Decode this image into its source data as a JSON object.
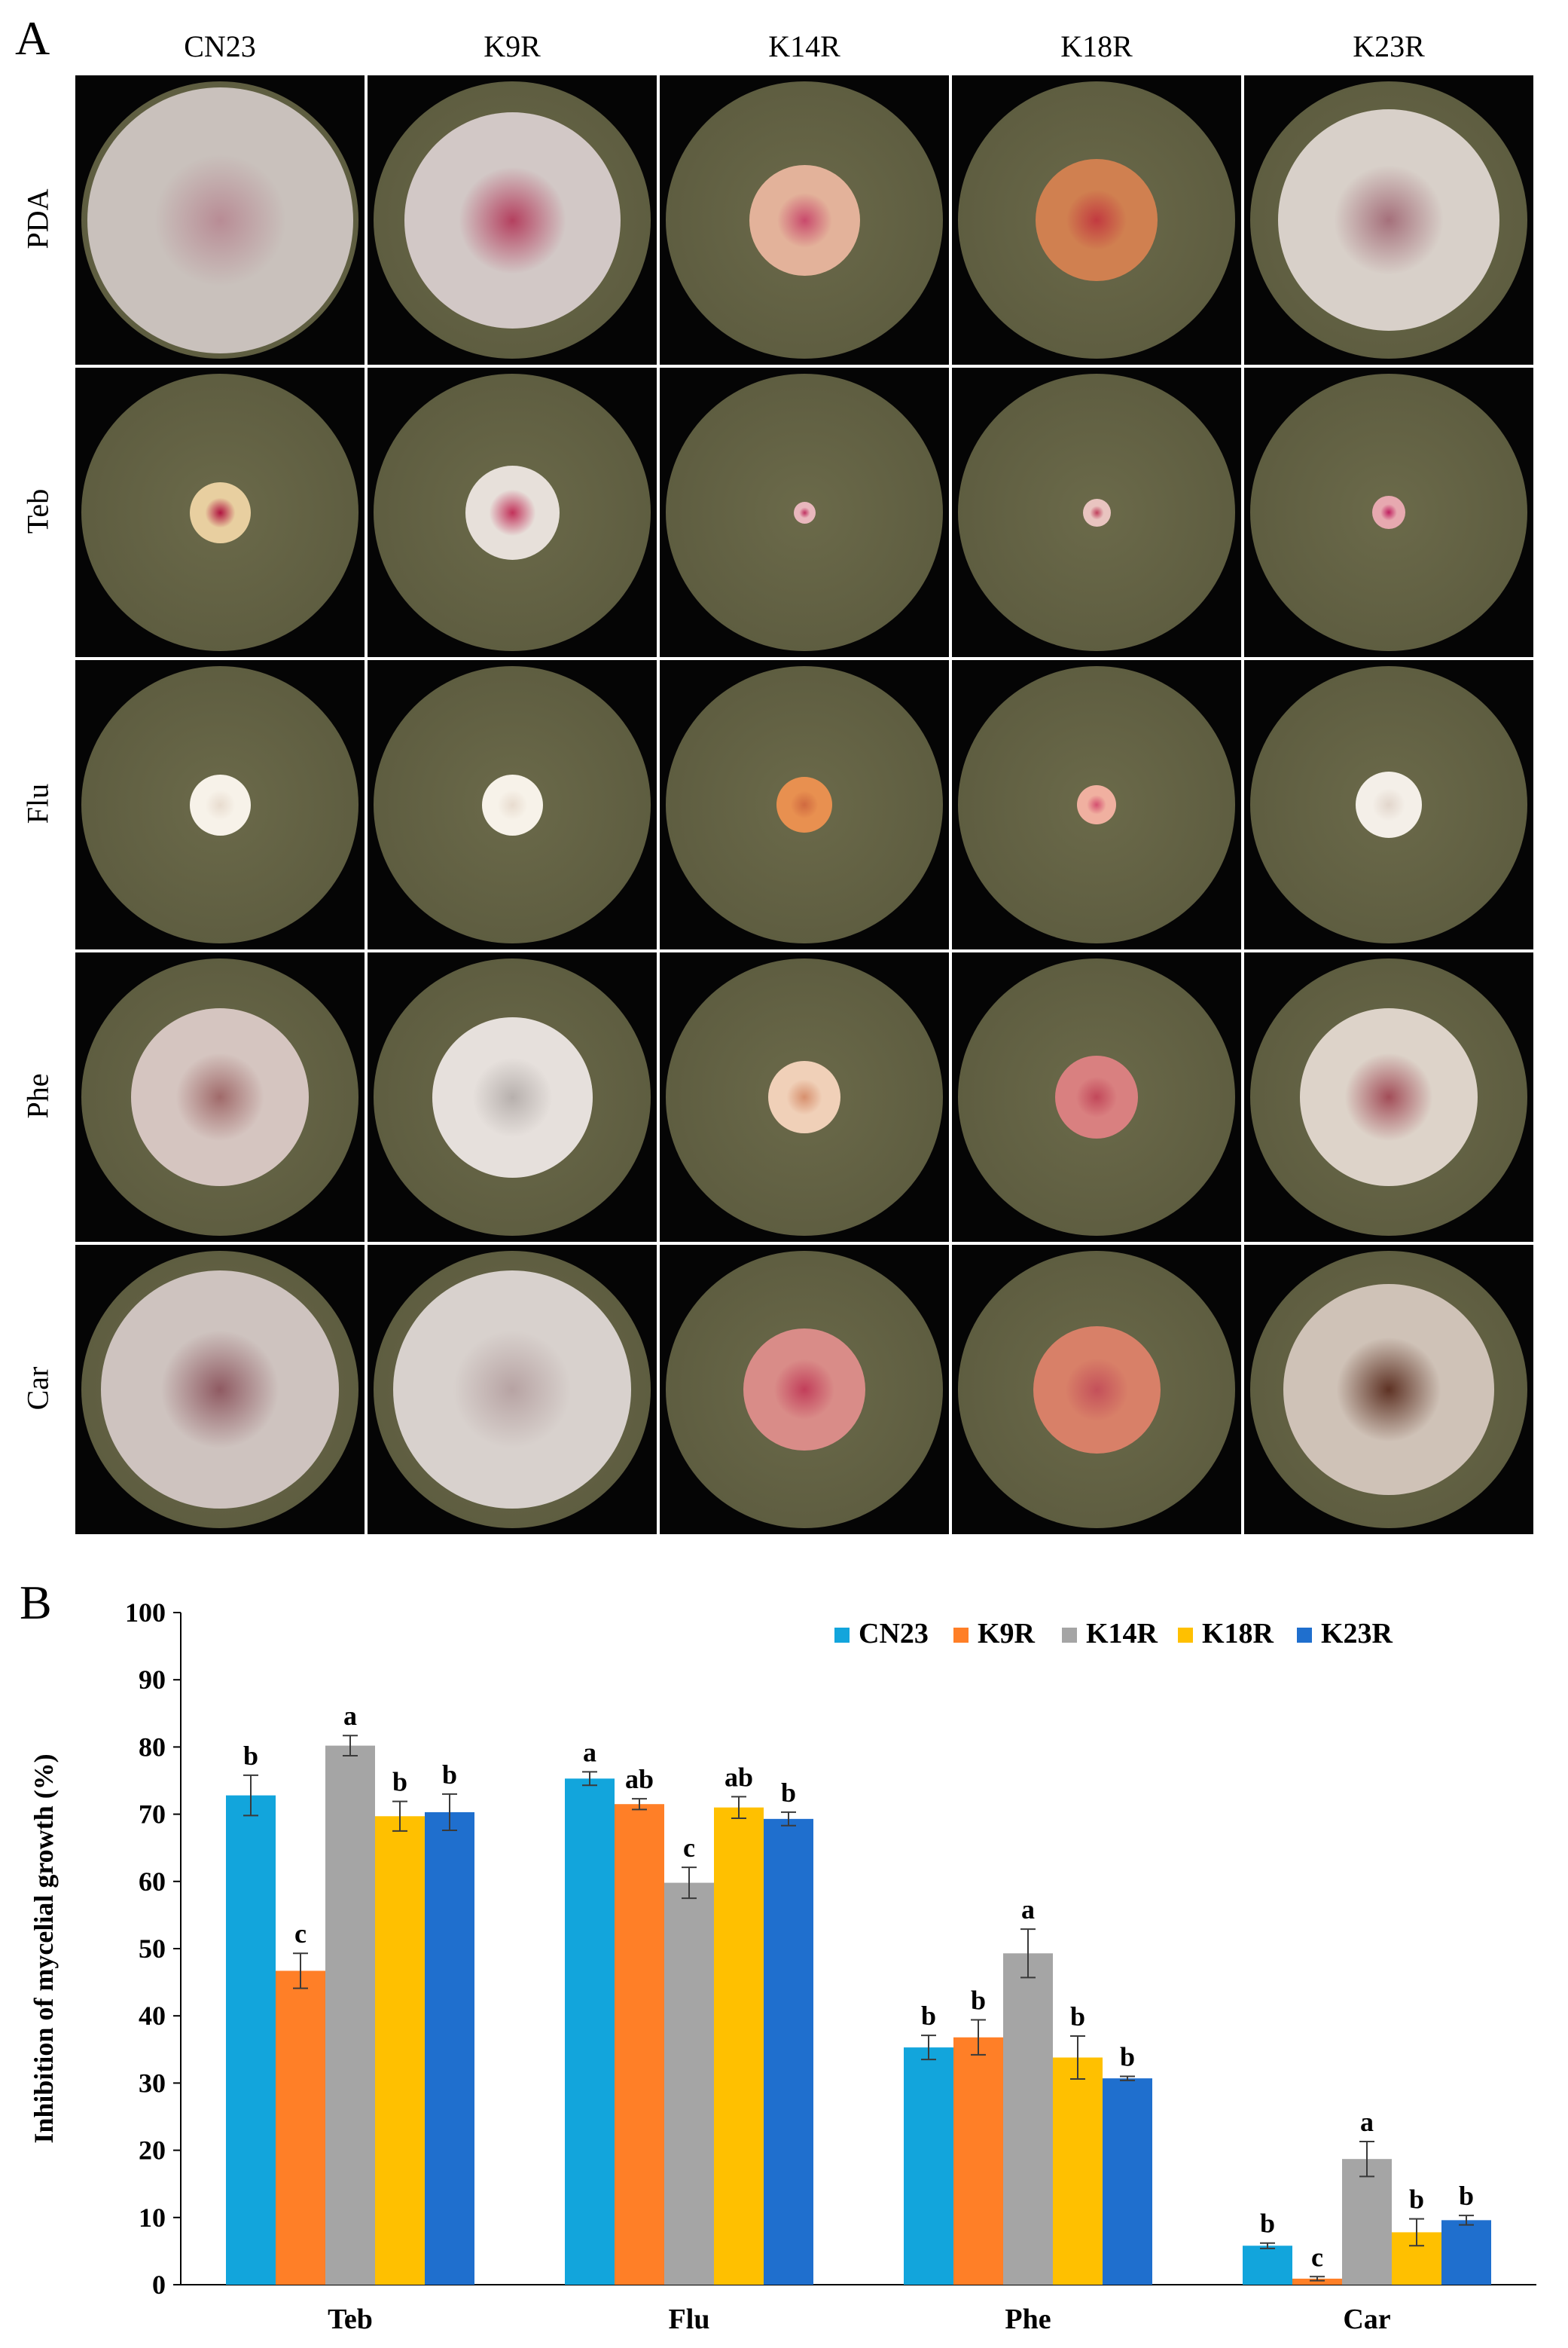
{
  "panel_a": {
    "letter": "A",
    "columns": [
      "CN23",
      "K9R",
      "K14R",
      "K18R",
      "K23R"
    ],
    "rows": [
      "PDA",
      "Teb",
      "Flu",
      "Phe",
      "Car"
    ],
    "colors": {
      "background": "#050505",
      "agar": "#6b6a4a",
      "rim": "#a8a279"
    }
  },
  "panel_b": {
    "letter": "B"
  },
  "chart_data": {
    "type": "bar",
    "title": "",
    "xlabel": "",
    "ylabel": "Inhibition of mycelial growth (%)",
    "ylim": [
      0,
      100
    ],
    "yticks": [
      "0",
      "10",
      "20",
      "30",
      "40",
      "50",
      "60",
      "70",
      "80",
      "90",
      "100"
    ],
    "grid": false,
    "legend_position": "top-right",
    "categories": [
      "Teb",
      "Flu",
      "Phe",
      "Car"
    ],
    "series": [
      {
        "name": "CN23",
        "color": "#12a5dc",
        "values": [
          72.8,
          75.3,
          35.3,
          5.8
        ],
        "errors": [
          3.0,
          1.0,
          1.8,
          0.4
        ],
        "letters": [
          "b",
          "a",
          "b",
          "b"
        ]
      },
      {
        "name": "K9R",
        "color": "#ff7f27",
        "values": [
          46.7,
          71.5,
          36.8,
          0.9
        ],
        "errors": [
          2.6,
          0.8,
          2.6,
          0.3
        ],
        "letters": [
          "c",
          "ab",
          "b",
          "c"
        ]
      },
      {
        "name": "K14R",
        "color": "#a5a5a5",
        "values": [
          80.2,
          59.8,
          49.3,
          18.7
        ],
        "errors": [
          1.5,
          2.3,
          3.6,
          2.6
        ],
        "letters": [
          "a",
          "c",
          "a",
          "a"
        ]
      },
      {
        "name": "K18R",
        "color": "#ffc000",
        "values": [
          69.7,
          71.0,
          33.8,
          7.8
        ],
        "errors": [
          2.2,
          1.6,
          3.2,
          2.0
        ],
        "letters": [
          "b",
          "ab",
          "b",
          "b"
        ]
      },
      {
        "name": "K23R",
        "color": "#1f6fce",
        "values": [
          70.3,
          69.3,
          30.7,
          9.6
        ],
        "errors": [
          2.7,
          1.0,
          0.3,
          0.7
        ],
        "letters": [
          "b",
          "b",
          "b",
          "b"
        ]
      }
    ]
  }
}
